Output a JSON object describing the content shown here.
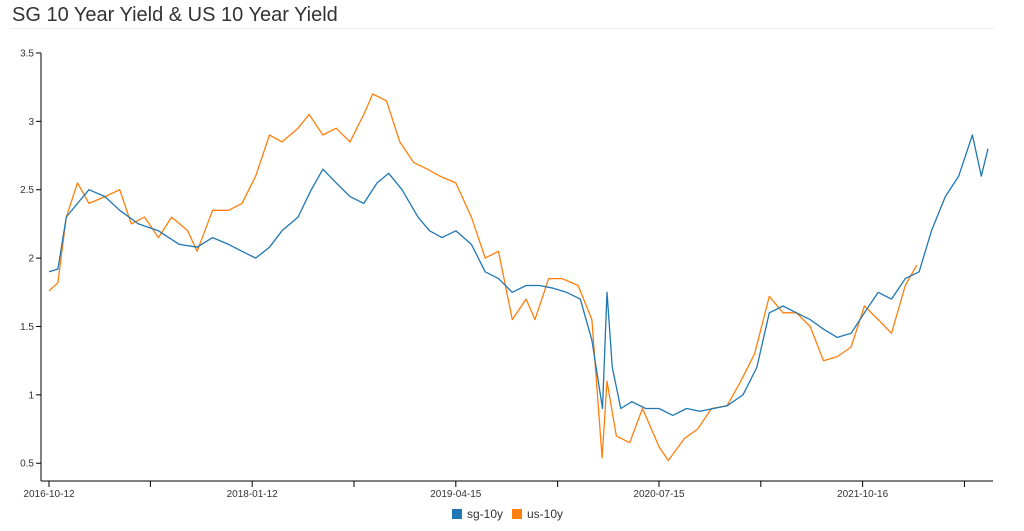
{
  "chart_data": {
    "type": "line",
    "title": "SG 10 Year Yield & US 10 Year Yield",
    "xlabel": "",
    "ylabel": "",
    "x_range": [
      "2016-10-12",
      "2022-07-25"
    ],
    "ylim": [
      0.37,
      3.5
    ],
    "y_ticks": [
      0.5,
      1,
      1.5,
      2,
      2.5,
      3,
      3.5
    ],
    "y_tick_labels": [
      "0.5",
      "1",
      "1.5",
      "2",
      "2.5",
      "3",
      "3.5"
    ],
    "x_ticks": [
      "2016-10-12",
      "2017-05-28",
      "2018-01-12",
      "2018-08-29",
      "2019-04-15",
      "2019-11-30",
      "2020-07-15",
      "2021-03-01",
      "2021-10-16",
      "2022-06-02"
    ],
    "x_tick_labels": [
      "2016-10-12",
      "",
      "2018-01-12",
      "",
      "2019-04-15",
      "",
      "2020-07-15",
      "",
      "2021-10-16",
      ""
    ],
    "grid": false,
    "legend": "bottom-center",
    "series": [
      {
        "name": "sg-10y",
        "color": "#1f77b4",
        "points": [
          [
            "2016-10-12",
            1.9
          ],
          [
            "2016-11-01",
            1.92
          ],
          [
            "2016-11-20",
            2.3
          ],
          [
            "2016-12-15",
            2.4
          ],
          [
            "2017-01-10",
            2.5
          ],
          [
            "2017-02-15",
            2.45
          ],
          [
            "2017-03-20",
            2.35
          ],
          [
            "2017-05-01",
            2.25
          ],
          [
            "2017-06-15",
            2.2
          ],
          [
            "2017-08-01",
            2.1
          ],
          [
            "2017-09-10",
            2.08
          ],
          [
            "2017-10-15",
            2.15
          ],
          [
            "2017-11-20",
            2.1
          ],
          [
            "2017-12-20",
            2.05
          ],
          [
            "2018-01-20",
            2.0
          ],
          [
            "2018-02-20",
            2.08
          ],
          [
            "2018-03-20",
            2.2
          ],
          [
            "2018-04-25",
            2.3
          ],
          [
            "2018-05-25",
            2.5
          ],
          [
            "2018-06-20",
            2.65
          ],
          [
            "2018-07-20",
            2.55
          ],
          [
            "2018-08-20",
            2.45
          ],
          [
            "2018-09-20",
            2.4
          ],
          [
            "2018-10-20",
            2.55
          ],
          [
            "2018-11-15",
            2.62
          ],
          [
            "2018-12-15",
            2.5
          ],
          [
            "2019-01-20",
            2.3
          ],
          [
            "2019-02-15",
            2.2
          ],
          [
            "2019-03-15",
            2.15
          ],
          [
            "2019-04-15",
            2.2
          ],
          [
            "2019-05-20",
            2.1
          ],
          [
            "2019-06-20",
            1.9
          ],
          [
            "2019-07-20",
            1.85
          ],
          [
            "2019-08-20",
            1.75
          ],
          [
            "2019-09-20",
            1.8
          ],
          [
            "2019-10-20",
            1.8
          ],
          [
            "2019-11-20",
            1.78
          ],
          [
            "2019-12-20",
            1.75
          ],
          [
            "2020-01-20",
            1.7
          ],
          [
            "2020-02-15",
            1.4
          ],
          [
            "2020-03-10",
            0.9
          ],
          [
            "2020-03-20",
            1.75
          ],
          [
            "2020-04-01",
            1.2
          ],
          [
            "2020-04-20",
            0.9
          ],
          [
            "2020-05-15",
            0.95
          ],
          [
            "2020-06-15",
            0.9
          ],
          [
            "2020-07-15",
            0.9
          ],
          [
            "2020-08-15",
            0.85
          ],
          [
            "2020-09-15",
            0.9
          ],
          [
            "2020-10-15",
            0.88
          ],
          [
            "2020-11-15",
            0.9
          ],
          [
            "2020-12-15",
            0.92
          ],
          [
            "2021-01-20",
            1.0
          ],
          [
            "2021-02-20",
            1.2
          ],
          [
            "2021-03-20",
            1.6
          ],
          [
            "2021-04-20",
            1.65
          ],
          [
            "2021-05-20",
            1.6
          ],
          [
            "2021-06-20",
            1.55
          ],
          [
            "2021-07-20",
            1.48
          ],
          [
            "2021-08-20",
            1.42
          ],
          [
            "2021-09-20",
            1.45
          ],
          [
            "2021-10-20",
            1.6
          ],
          [
            "2021-11-20",
            1.75
          ],
          [
            "2021-12-20",
            1.7
          ],
          [
            "2022-01-20",
            1.85
          ],
          [
            "2022-02-20",
            1.9
          ],
          [
            "2022-03-20",
            2.2
          ],
          [
            "2022-04-20",
            2.45
          ],
          [
            "2022-05-20",
            2.6
          ],
          [
            "2022-06-20",
            2.9
          ],
          [
            "2022-07-10",
            2.6
          ],
          [
            "2022-07-25",
            2.8
          ]
        ]
      },
      {
        "name": "us-10y",
        "color": "#ff7f0e",
        "points": [
          [
            "2016-10-12",
            1.76
          ],
          [
            "2016-11-01",
            1.82
          ],
          [
            "2016-11-20",
            2.3
          ],
          [
            "2016-12-15",
            2.55
          ],
          [
            "2017-01-10",
            2.4
          ],
          [
            "2017-02-15",
            2.45
          ],
          [
            "2017-03-20",
            2.5
          ],
          [
            "2017-04-15",
            2.25
          ],
          [
            "2017-05-15",
            2.3
          ],
          [
            "2017-06-15",
            2.15
          ],
          [
            "2017-07-15",
            2.3
          ],
          [
            "2017-08-20",
            2.2
          ],
          [
            "2017-09-10",
            2.05
          ],
          [
            "2017-10-15",
            2.35
          ],
          [
            "2017-11-20",
            2.35
          ],
          [
            "2017-12-20",
            2.4
          ],
          [
            "2018-01-20",
            2.6
          ],
          [
            "2018-02-20",
            2.9
          ],
          [
            "2018-03-20",
            2.85
          ],
          [
            "2018-04-25",
            2.95
          ],
          [
            "2018-05-20",
            3.05
          ],
          [
            "2018-06-20",
            2.9
          ],
          [
            "2018-07-20",
            2.95
          ],
          [
            "2018-08-20",
            2.85
          ],
          [
            "2018-09-20",
            3.05
          ],
          [
            "2018-10-10",
            3.2
          ],
          [
            "2018-11-10",
            3.15
          ],
          [
            "2018-12-10",
            2.85
          ],
          [
            "2019-01-10",
            2.7
          ],
          [
            "2019-02-10",
            2.65
          ],
          [
            "2019-03-10",
            2.6
          ],
          [
            "2019-04-15",
            2.55
          ],
          [
            "2019-05-20",
            2.3
          ],
          [
            "2019-06-20",
            2.0
          ],
          [
            "2019-07-20",
            2.05
          ],
          [
            "2019-08-20",
            1.55
          ],
          [
            "2019-09-20",
            1.7
          ],
          [
            "2019-10-10",
            1.55
          ],
          [
            "2019-11-10",
            1.85
          ],
          [
            "2019-12-10",
            1.85
          ],
          [
            "2020-01-15",
            1.8
          ],
          [
            "2020-02-15",
            1.55
          ],
          [
            "2020-03-09",
            0.54
          ],
          [
            "2020-03-20",
            1.1
          ],
          [
            "2020-04-10",
            0.7
          ],
          [
            "2020-05-10",
            0.65
          ],
          [
            "2020-06-08",
            0.9
          ],
          [
            "2020-07-15",
            0.62
          ],
          [
            "2020-08-05",
            0.52
          ],
          [
            "2020-09-10",
            0.68
          ],
          [
            "2020-10-10",
            0.75
          ],
          [
            "2020-11-10",
            0.9
          ],
          [
            "2020-12-15",
            0.92
          ],
          [
            "2021-01-15",
            1.1
          ],
          [
            "2021-02-15",
            1.3
          ],
          [
            "2021-03-20",
            1.72
          ],
          [
            "2021-04-20",
            1.6
          ],
          [
            "2021-05-20",
            1.6
          ],
          [
            "2021-06-20",
            1.5
          ],
          [
            "2021-07-20",
            1.25
          ],
          [
            "2021-08-20",
            1.28
          ],
          [
            "2021-09-20",
            1.35
          ],
          [
            "2021-10-20",
            1.65
          ],
          [
            "2021-11-20",
            1.55
          ],
          [
            "2021-12-20",
            1.45
          ],
          [
            "2022-01-20",
            1.8
          ],
          [
            "2022-02-15",
            1.95
          ]
        ]
      }
    ]
  }
}
